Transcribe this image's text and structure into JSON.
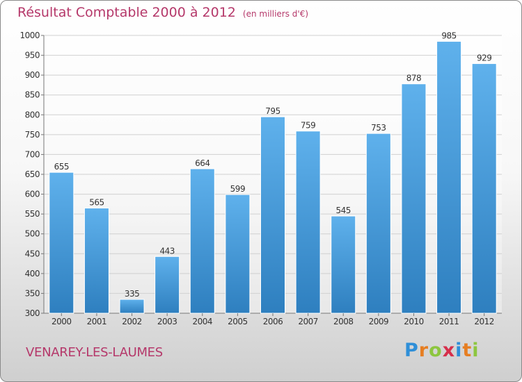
{
  "header": {
    "title": "Résultat Comptable 2000 à 2012",
    "unit": "(en milliers d'€)"
  },
  "footer": {
    "commune": "VENAREY-LES-LAUMES",
    "logo_letters": [
      "P",
      "r",
      "o",
      "x",
      "i",
      "t",
      "i"
    ],
    "logo_colors": [
      "#2f8fd8",
      "#e67e22",
      "#8dc63f",
      "#d62f4b",
      "#2f8fd8",
      "#e67e22",
      "#8dc63f"
    ]
  },
  "colors": {
    "bar_top": "#5fb1ec",
    "bar_bottom": "#2e7fbf",
    "accent": "#b5386a"
  },
  "chart_data": {
    "type": "bar",
    "title": "Résultat Comptable 2000 à 2012",
    "subtitle": "(en milliers d'€)",
    "categories": [
      "2000",
      "2001",
      "2002",
      "2003",
      "2004",
      "2005",
      "2006",
      "2007",
      "2008",
      "2009",
      "2010",
      "2011",
      "2012"
    ],
    "values": [
      655,
      565,
      335,
      443,
      664,
      599,
      795,
      759,
      545,
      753,
      878,
      985,
      929
    ],
    "yticks": [
      300,
      350,
      400,
      450,
      500,
      550,
      600,
      650,
      700,
      750,
      800,
      850,
      900,
      950,
      1000
    ],
    "ylim": [
      300,
      1000
    ],
    "grid": true,
    "data_labels": true
  }
}
